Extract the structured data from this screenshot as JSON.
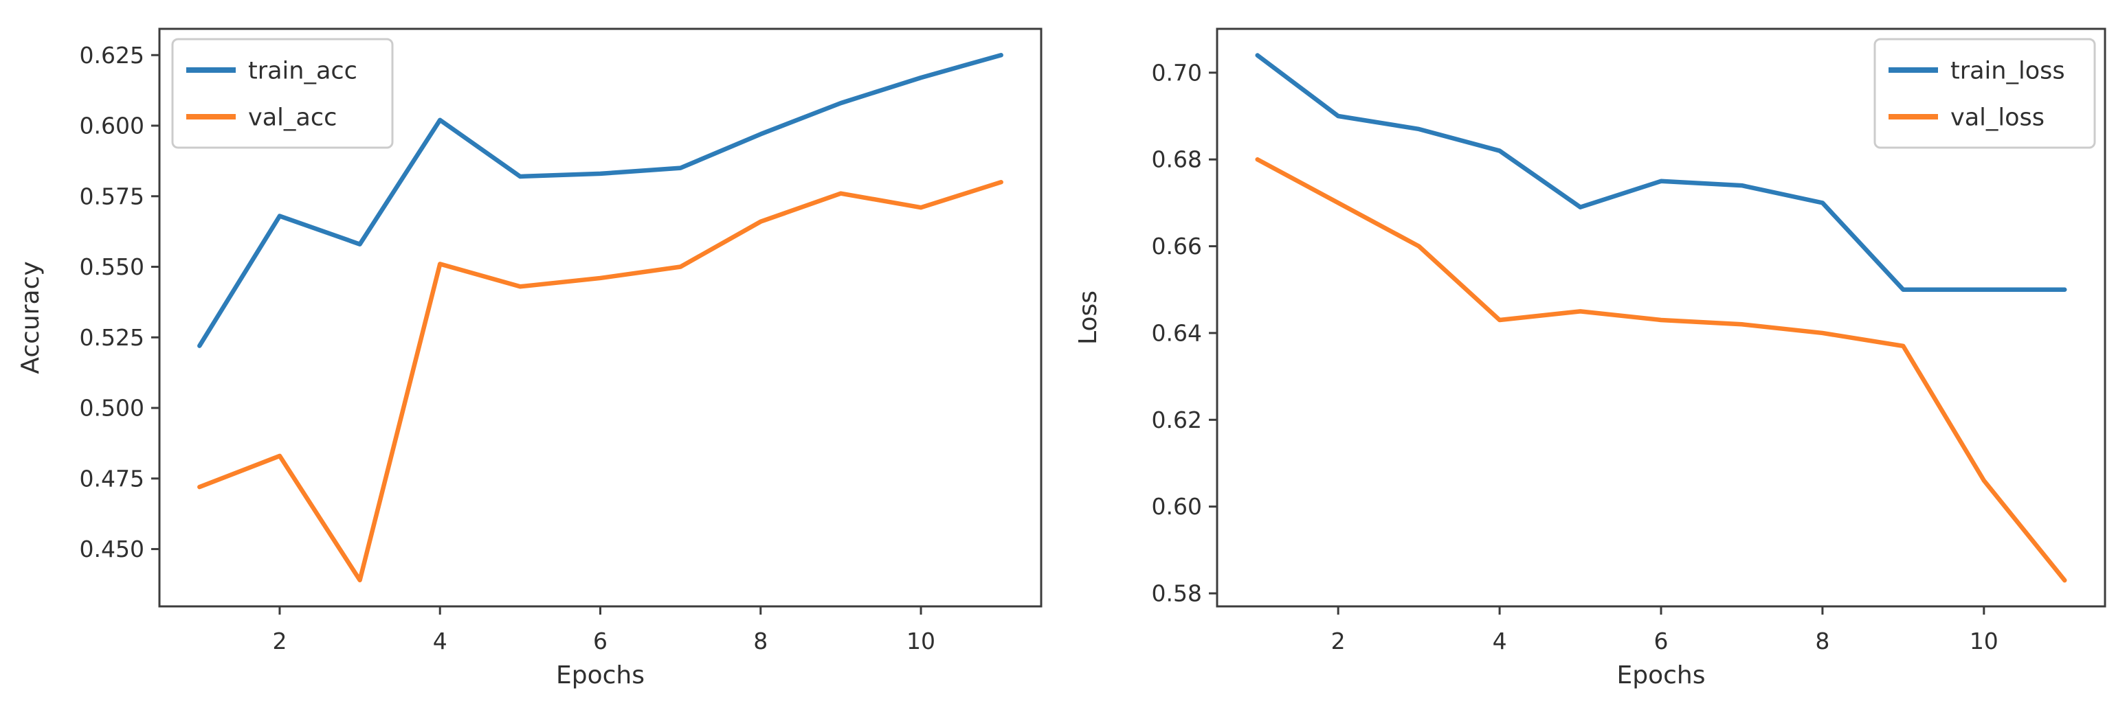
{
  "figure": {
    "background": "#ffffff",
    "spine_color": "#3c3c3c",
    "tick_color": "#3c3c3c",
    "text_color": "#2f2f2f",
    "legend_border_color": "#cccccc",
    "legend_background": "#ffffff"
  },
  "chart_data": [
    {
      "id": "accuracy",
      "type": "line",
      "title": "",
      "xlabel": "Epochs",
      "ylabel": "Accuracy",
      "x": [
        1,
        2,
        3,
        4,
        5,
        6,
        7,
        8,
        9,
        10,
        11
      ],
      "series": [
        {
          "name": "train_acc",
          "color": "#2d7cb8",
          "values": [
            0.522,
            0.568,
            0.558,
            0.602,
            0.582,
            0.583,
            0.585,
            0.597,
            0.608,
            0.617,
            0.625
          ]
        },
        {
          "name": "val_acc",
          "color": "#fc8128",
          "values": [
            0.472,
            0.483,
            0.439,
            0.551,
            0.543,
            0.546,
            0.55,
            0.566,
            0.576,
            0.571,
            0.58
          ]
        }
      ],
      "xlim": [
        0.5,
        11.5
      ],
      "ylim": [
        0.4297,
        0.6343
      ],
      "xticks": [
        2,
        4,
        6,
        8,
        10
      ],
      "yticks": [
        0.45,
        0.475,
        0.5,
        0.525,
        0.55,
        0.575,
        0.6,
        0.625
      ],
      "ytick_decimals": 3,
      "grid": false,
      "legend": {
        "position": "upper-left",
        "entries": [
          "train_acc",
          "val_acc"
        ]
      }
    },
    {
      "id": "loss",
      "type": "line",
      "title": "",
      "xlabel": "Epochs",
      "ylabel": "Loss",
      "x": [
        1,
        2,
        3,
        4,
        5,
        6,
        7,
        8,
        9,
        10,
        11
      ],
      "series": [
        {
          "name": "train_loss",
          "color": "#2d7cb8",
          "values": [
            0.704,
            0.69,
            0.687,
            0.682,
            0.669,
            0.675,
            0.674,
            0.67,
            0.65,
            0.65,
            0.65
          ]
        },
        {
          "name": "val_loss",
          "color": "#fc8128",
          "values": [
            0.68,
            0.67,
            0.66,
            0.643,
            0.645,
            0.643,
            0.642,
            0.64,
            0.637,
            0.606,
            0.583
          ]
        }
      ],
      "xlim": [
        0.5,
        11.5
      ],
      "ylim": [
        0.577,
        0.7101
      ],
      "xticks": [
        2,
        4,
        6,
        8,
        10
      ],
      "yticks": [
        0.58,
        0.6,
        0.62,
        0.64,
        0.66,
        0.68,
        0.7
      ],
      "ytick_decimals": 2,
      "grid": false,
      "legend": {
        "position": "upper-right",
        "entries": [
          "train_loss",
          "val_loss"
        ]
      }
    }
  ]
}
